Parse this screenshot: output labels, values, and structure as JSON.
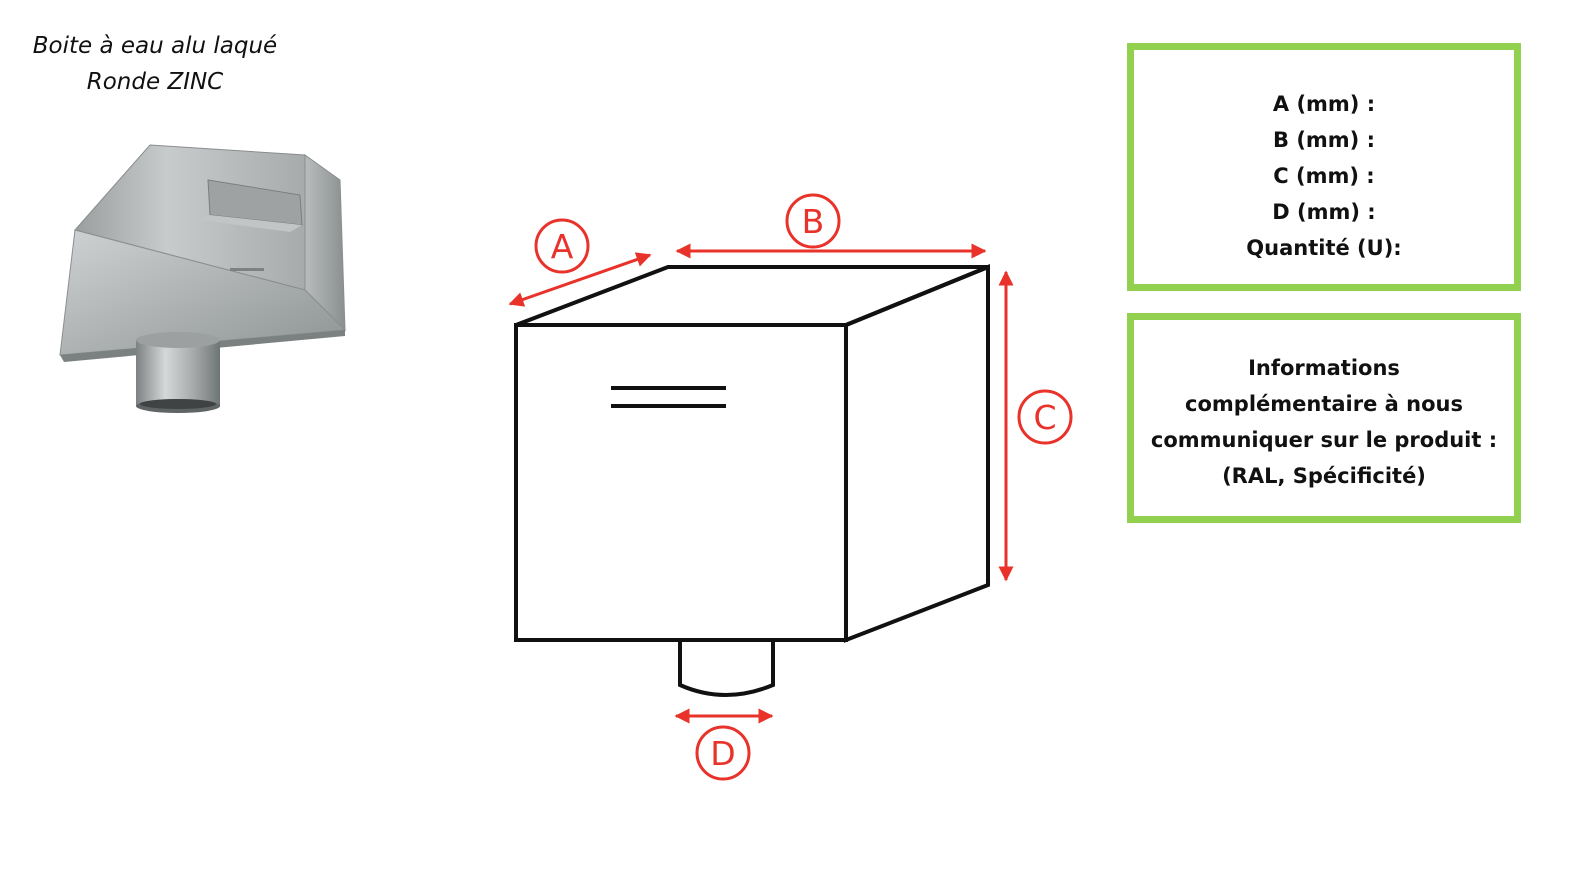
{
  "product": {
    "caption_line1": "Boite à eau alu laqué",
    "caption_line2": "Ronde ZINC"
  },
  "diagram": {
    "labels": {
      "a": "A",
      "b": "B",
      "c": "C",
      "d": "D"
    },
    "colors": {
      "outline": "#111111",
      "dimension": "#e8322a"
    }
  },
  "dimensions_box": {
    "lines": [
      "A (mm) :",
      "B (mm) :",
      "C (mm) :",
      "D (mm) :",
      "Quantité (U):"
    ],
    "border_color": "#92d050"
  },
  "info_box": {
    "lines": [
      "Informations",
      "complémentaire à nous",
      "communiquer sur le produit :",
      "(RAL, Spécificité)"
    ],
    "border_color": "#92d050"
  }
}
